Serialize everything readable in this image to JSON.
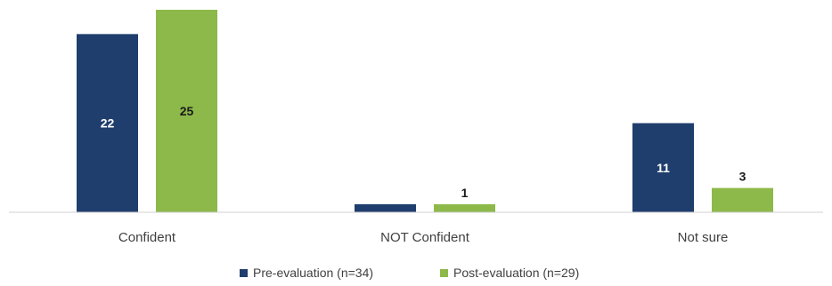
{
  "chart_data": {
    "type": "bar",
    "title": "",
    "xlabel": "",
    "ylabel": "",
    "categories": [
      "Confident",
      "NOT Confident",
      "Not sure"
    ],
    "series": [
      {
        "name": "Pre-evaluation (n=34)",
        "color": "#1f3e6e",
        "values": [
          22,
          1,
          11
        ],
        "data_labels": [
          "22",
          "",
          "11"
        ],
        "label_position": "inside",
        "label_color": "#ffffff"
      },
      {
        "name": "Post-evaluation (n=29)",
        "color": "#8db94a",
        "values": [
          25,
          1,
          3
        ],
        "data_labels": [
          "25",
          "1",
          "3"
        ],
        "label_position": "mixed",
        "label_color": "#1a1a1a"
      }
    ],
    "ylim": [
      0,
      25
    ],
    "grid": false,
    "legend": "bottom-center"
  }
}
